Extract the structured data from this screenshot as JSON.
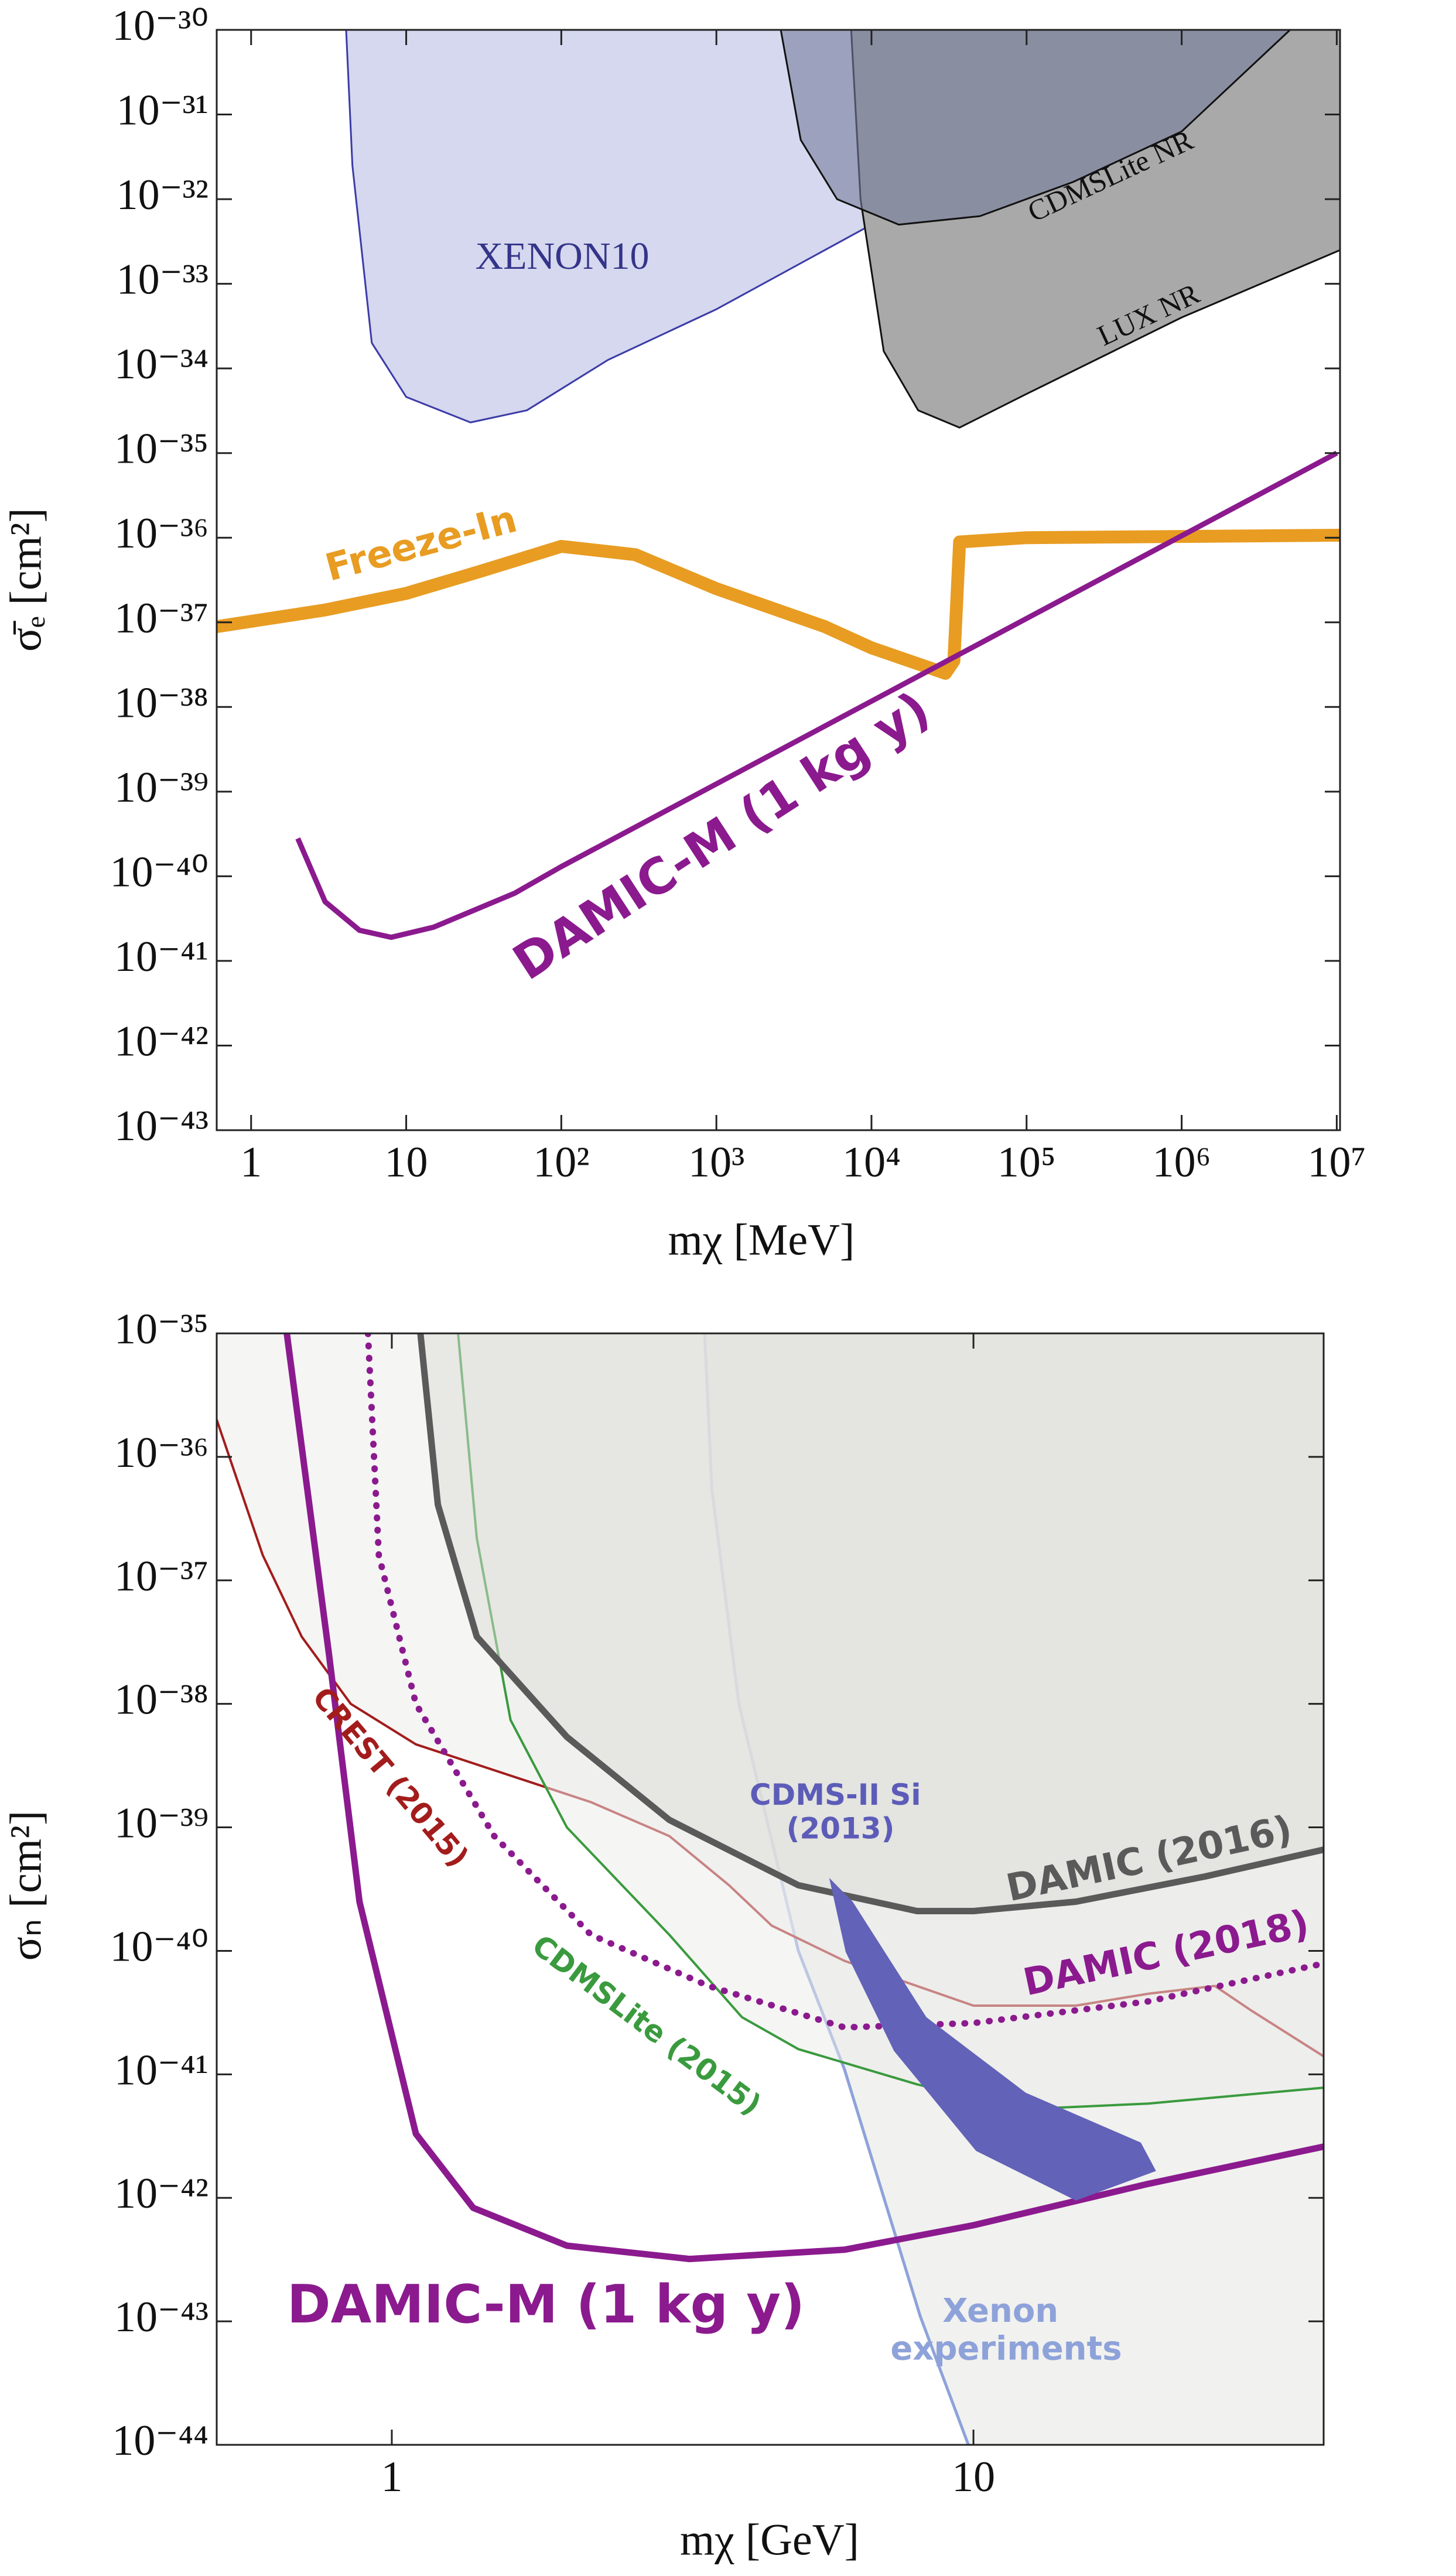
{
  "chart_data": [
    {
      "type": "line",
      "x_label": "mχ [MeV]",
      "y_label": "σ̄ₑ [cm²]",
      "x_scale": "log",
      "y_scale": "log",
      "xlim": [
        0.6,
        10500000.0
      ],
      "ylim": [
        1e-43,
        1e-30
      ],
      "xticks": [
        1,
        10,
        {
          "value": 100,
          "label": "10²"
        },
        {
          "value": 1000,
          "label": "10³"
        },
        {
          "value": 10000.0,
          "label": "10⁴"
        },
        {
          "value": 100000.0,
          "label": "10⁵"
        },
        {
          "value": 1000000.0,
          "label": "10⁶"
        },
        {
          "value": 10000000.0,
          "label": "10⁷"
        }
      ],
      "yticks": [
        {
          "value": 1e-43,
          "label": "10⁻⁴³"
        },
        {
          "value": 1e-42,
          "label": "10⁻⁴²"
        },
        {
          "value": 1e-41,
          "label": "10⁻⁴¹"
        },
        {
          "value": 1e-40,
          "label": "10⁻⁴⁰"
        },
        {
          "value": 1e-39,
          "label": "10⁻³⁹"
        },
        {
          "value": 1e-38,
          "label": "10⁻³⁸"
        },
        {
          "value": 1e-37,
          "label": "10⁻³⁷"
        },
        {
          "value": 1e-36,
          "label": "10⁻³⁶"
        },
        {
          "value": 1e-35,
          "label": "10⁻³⁵"
        },
        {
          "value": 1e-34,
          "label": "10⁻³⁴"
        },
        {
          "value": 1e-33,
          "label": "10⁻³³"
        },
        {
          "value": 1e-32,
          "label": "10⁻³²"
        },
        {
          "value": 1e-31,
          "label": "10⁻³¹"
        },
        {
          "value": 1e-30,
          "label": "10⁻³⁰"
        }
      ],
      "series": [
        {
          "name": "XENON10",
          "color": "#3b3ba8",
          "fill": "#c9cde9",
          "fill_to": "top",
          "x": [
            4.1,
            4.5,
            6,
            10,
            26,
            60,
            200,
            1000,
            10000.0,
            100000.0,
            1000000.0,
            2500000.0
          ],
          "values": [
            1e-30,
            2.5e-32,
            2e-34,
            4.6e-35,
            2.3e-35,
            3.2e-35,
            1.26e-34,
            5e-34,
            5e-33,
            5e-32,
            4.5e-31,
            1e-30
          ]
        },
        {
          "name": "LUX NR",
          "color": "#111111",
          "fill": "#a9a9a9",
          "fill_to": "top",
          "x": [
            7400,
            8500,
            12000.0,
            20000.0,
            37000.0,
            100000.0,
            1000000.0,
            10500000.0
          ],
          "values": [
            1e-30,
            1e-32,
            1.6e-34,
            3.2e-35,
            2e-35,
            5e-35,
            4e-34,
            2.5e-33
          ]
        },
        {
          "name": "CDMSLite NR",
          "color": "#111111",
          "fill": "#767d9c",
          "fill_to": "top",
          "x": [
            2600,
            3500,
            6000,
            15000.0,
            50000.0,
            200000.0,
            1000000.0,
            5000000.0
          ],
          "values": [
            1e-30,
            5e-32,
            1e-32,
            5e-33,
            6.3e-33,
            1.6e-32,
            6.3e-32,
            1e-30
          ]
        },
        {
          "name": "Freeze-In",
          "color": "#e89c22",
          "x": [
            0.6,
            3,
            10,
            30,
            100,
            300,
            1000,
            5000,
            10000.0,
            30000.0,
            34000.0,
            37000.0,
            100000.0,
            10500000.0
          ],
          "values": [
            8.9e-38,
            1.4e-37,
            2.2e-37,
            4e-37,
            7.9e-37,
            6.3e-37,
            2.5e-37,
            8.9e-38,
            5e-38,
            2.5e-38,
            3.5e-38,
            8.9e-37,
            1e-36,
            1.07e-36
          ]
        },
        {
          "name": "DAMIC-M (1 kg y)",
          "color": "#8b1a8e",
          "x": [
            2,
            3,
            5,
            8,
            15,
            50,
            100,
            10000000.0
          ],
          "values": [
            2.8e-40,
            5e-41,
            2.3e-41,
            1.9e-41,
            2.5e-41,
            6.3e-41,
            1.3e-40,
            1e-35
          ]
        }
      ]
    },
    {
      "type": "line",
      "x_label": "mχ [GeV]",
      "y_label": "σₙ [cm²]",
      "x_scale": "log",
      "y_scale": "log",
      "xlim": [
        0.5,
        40
      ],
      "ylim": [
        1e-44,
        1e-35
      ],
      "xticks": [
        1,
        10
      ],
      "yticks": [
        {
          "value": 1e-44,
          "label": "10⁻⁴⁴"
        },
        {
          "value": 1e-43,
          "label": "10⁻⁴³"
        },
        {
          "value": 1e-42,
          "label": "10⁻⁴²"
        },
        {
          "value": 1e-41,
          "label": "10⁻⁴¹"
        },
        {
          "value": 1e-40,
          "label": "10⁻⁴⁰"
        },
        {
          "value": 1e-39,
          "label": "10⁻³⁹"
        },
        {
          "value": 1e-38,
          "label": "10⁻³⁸"
        },
        {
          "value": 1e-37,
          "label": "10⁻³⁷"
        },
        {
          "value": 1e-36,
          "label": "10⁻³⁶"
        },
        {
          "value": 1e-35,
          "label": "10⁻³⁵"
        }
      ],
      "series": [
        {
          "name": "Xenon experiments",
          "color": "#8ea2da",
          "fill": "#e6e6e2",
          "fill_to": "top",
          "x": [
            3.45,
            3.55,
            3.95,
            5,
            6,
            8.1,
            9.8
          ],
          "values": [
            1e-35,
            5.5e-37,
            1e-38,
            1e-40,
            1.1e-41,
            1.1e-43,
            1e-44
          ]
        },
        {
          "name": "CREST (2015)",
          "color": "#a31c1c",
          "fill": "#ececea",
          "fill_to": "top",
          "x": [
            0.5,
            0.6,
            0.7,
            0.85,
            1.1,
            1.5,
            2.2,
            3,
            3.8,
            4.5,
            6,
            10,
            15,
            20,
            26,
            30,
            40
          ],
          "values": [
            2e-36,
            1.6e-37,
            3.5e-38,
            1e-38,
            4.7e-39,
            2.9e-39,
            1.6e-39,
            8.5e-40,
            3.4e-40,
            1.6e-40,
            8.3e-41,
            3.6e-41,
            3.6e-41,
            4.5e-41,
            5.2e-41,
            3.3e-41,
            1.4e-41
          ]
        },
        {
          "name": "CDMSLite (2015)",
          "color": "#3a9a3e",
          "fill": "#ececea",
          "fill_to": "top",
          "x": [
            1.3,
            1.4,
            1.6,
            2,
            3,
            4,
            5,
            8,
            12,
            20,
            40
          ],
          "values": [
            1e-35,
            2.2e-37,
            7.4e-39,
            1e-39,
            1.35e-40,
            2.9e-41,
            1.6e-41,
            8.3e-42,
            5.2e-42,
            5.8e-42,
            7.8e-42
          ]
        },
        {
          "name": "DAMIC (2016)",
          "color": "#5a5a5a",
          "fill": "#dcdcd6",
          "fill_to": "top",
          "x": [
            1.12,
            1.2,
            1.4,
            2,
            3,
            5,
            8,
            10,
            15,
            25,
            40
          ],
          "values": [
            1e-35,
            4.1e-37,
            3.5e-38,
            5.4e-39,
            1.15e-39,
            3.4e-40,
            2.1e-40,
            2.1e-40,
            2.5e-40,
            4e-40,
            6.6e-40
          ]
        },
        {
          "name": "DAMIC (2018)",
          "color": "#8b1a8e",
          "dotted": true,
          "x": [
            0.91,
            0.95,
            1.1,
            1.5,
            2.2,
            3.5,
            6,
            10,
            20,
            40
          ],
          "values": [
            1e-35,
            1.6e-37,
            1e-38,
            8.5e-40,
            1.35e-40,
            5.2e-41,
            2.4e-41,
            2.6e-41,
            3.9e-41,
            7.9e-41
          ]
        },
        {
          "name": "DAMIC-M (1 kg y)",
          "color": "#8b1a8e",
          "x": [
            0.66,
            0.78,
            0.88,
            1.1,
            1.38,
            2,
            3.25,
            6,
            10,
            20,
            40
          ],
          "values": [
            1e-35,
            2.5e-38,
            2.5e-40,
            3.3e-42,
            8.3e-43,
            4.1e-43,
            3.2e-43,
            3.8e-43,
            6e-43,
            1.3e-42,
            2.6e-42
          ]
        },
        {
          "name": "CDMS-II Si (2013)",
          "color": "#5c5cb8",
          "fill": "#6262b8",
          "fill_to": "closed",
          "x": [
            5.65,
            6.2,
            8.3,
            12.3,
            19.4,
            20.6,
            15,
            10.1,
            7.3,
            6.03
          ],
          "values": [
            3.9e-40,
            2.5e-40,
            2.9e-41,
            7.1e-42,
            2.8e-42,
            1.65e-42,
            9.5e-43,
            2.4e-42,
            1.55e-41,
            9.8e-41
          ]
        }
      ]
    }
  ]
}
